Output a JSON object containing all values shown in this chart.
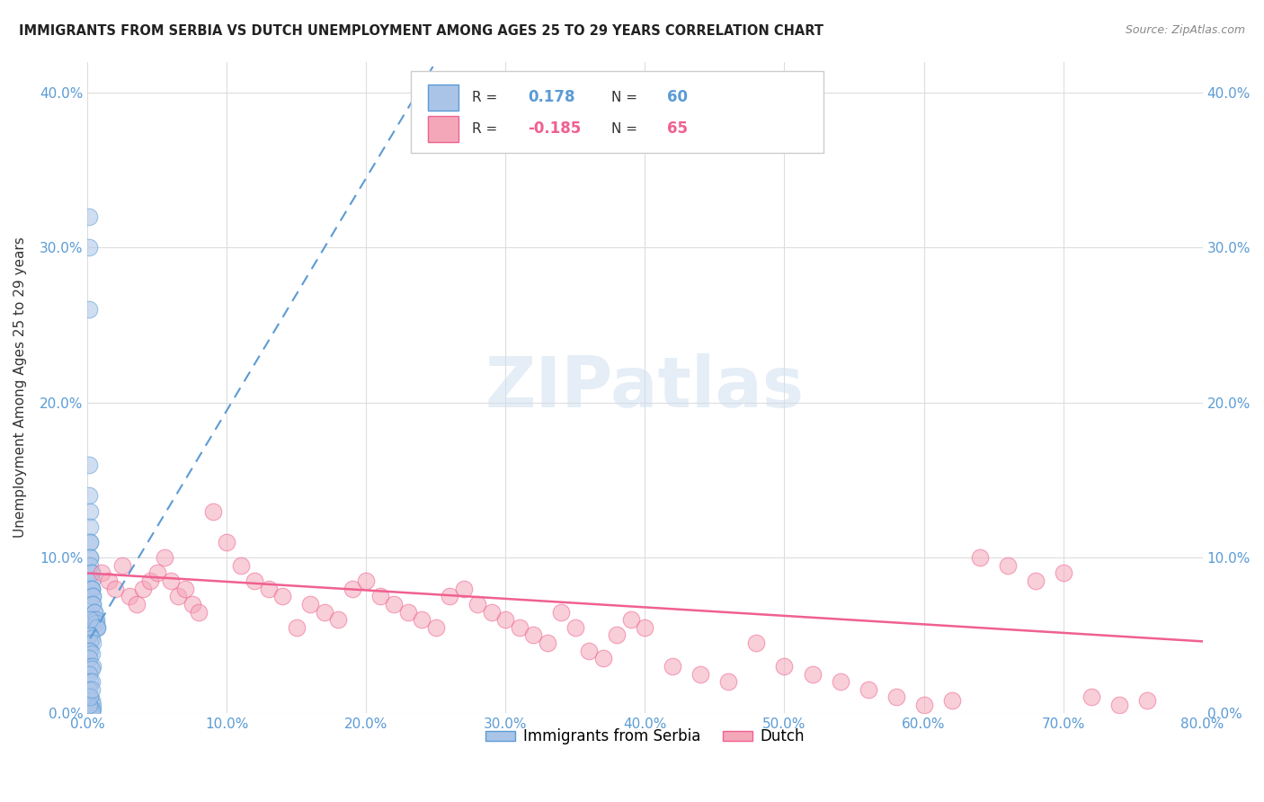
{
  "title": "IMMIGRANTS FROM SERBIA VS DUTCH UNEMPLOYMENT AMONG AGES 25 TO 29 YEARS CORRELATION CHART",
  "source": "Source: ZipAtlas.com",
  "ylabel": "Unemployment Among Ages 25 to 29 years",
  "xlim": [
    0.0,
    0.8
  ],
  "ylim": [
    0.0,
    0.42
  ],
  "xticks": [
    0.0,
    0.1,
    0.2,
    0.3,
    0.4,
    0.5,
    0.6,
    0.7,
    0.8
  ],
  "yticks": [
    0.0,
    0.1,
    0.2,
    0.3,
    0.4
  ],
  "serbia_R": 0.178,
  "serbia_N": 60,
  "dutch_R": -0.185,
  "dutch_N": 65,
  "serbia_color": "#aac4e8",
  "dutch_color": "#f4a7b9",
  "serbia_line_color": "#5b9bd5",
  "dutch_line_color": "#f06090",
  "serbia_points_x": [
    0.001,
    0.001,
    0.001,
    0.001,
    0.001,
    0.002,
    0.002,
    0.002,
    0.002,
    0.002,
    0.002,
    0.002,
    0.003,
    0.003,
    0.003,
    0.003,
    0.003,
    0.003,
    0.004,
    0.004,
    0.004,
    0.004,
    0.005,
    0.005,
    0.005,
    0.006,
    0.006,
    0.006,
    0.007,
    0.007,
    0.001,
    0.002,
    0.001,
    0.003,
    0.002,
    0.004,
    0.001,
    0.002,
    0.003,
    0.001,
    0.002,
    0.004,
    0.003,
    0.001,
    0.002,
    0.003,
    0.001,
    0.002,
    0.003,
    0.004,
    0.001,
    0.002,
    0.003,
    0.004,
    0.002,
    0.003,
    0.001,
    0.002,
    0.003,
    0.002
  ],
  "serbia_points_y": [
    0.32,
    0.3,
    0.26,
    0.16,
    0.14,
    0.13,
    0.12,
    0.11,
    0.11,
    0.1,
    0.1,
    0.095,
    0.09,
    0.09,
    0.085,
    0.08,
    0.08,
    0.08,
    0.075,
    0.075,
    0.07,
    0.07,
    0.065,
    0.065,
    0.06,
    0.06,
    0.058,
    0.055,
    0.055,
    0.055,
    0.05,
    0.05,
    0.05,
    0.048,
    0.045,
    0.045,
    0.04,
    0.04,
    0.038,
    0.035,
    0.03,
    0.03,
    0.028,
    0.025,
    0.02,
    0.02,
    0.015,
    0.01,
    0.008,
    0.005,
    0.005,
    0.003,
    0.002,
    0.002,
    0.001,
    0.001,
    0.005,
    0.01,
    0.015,
    0.06
  ],
  "dutch_points_x": [
    0.01,
    0.015,
    0.02,
    0.025,
    0.03,
    0.035,
    0.04,
    0.045,
    0.05,
    0.055,
    0.06,
    0.065,
    0.07,
    0.075,
    0.08,
    0.09,
    0.1,
    0.11,
    0.12,
    0.13,
    0.14,
    0.15,
    0.16,
    0.17,
    0.18,
    0.19,
    0.2,
    0.21,
    0.22,
    0.23,
    0.24,
    0.25,
    0.26,
    0.27,
    0.28,
    0.29,
    0.3,
    0.31,
    0.32,
    0.33,
    0.34,
    0.35,
    0.36,
    0.37,
    0.38,
    0.39,
    0.4,
    0.42,
    0.44,
    0.46,
    0.48,
    0.5,
    0.52,
    0.54,
    0.56,
    0.58,
    0.6,
    0.62,
    0.64,
    0.66,
    0.68,
    0.7,
    0.72,
    0.74,
    0.76
  ],
  "dutch_points_y": [
    0.09,
    0.085,
    0.08,
    0.095,
    0.075,
    0.07,
    0.08,
    0.085,
    0.09,
    0.1,
    0.085,
    0.075,
    0.08,
    0.07,
    0.065,
    0.13,
    0.11,
    0.095,
    0.085,
    0.08,
    0.075,
    0.055,
    0.07,
    0.065,
    0.06,
    0.08,
    0.085,
    0.075,
    0.07,
    0.065,
    0.06,
    0.055,
    0.075,
    0.08,
    0.07,
    0.065,
    0.06,
    0.055,
    0.05,
    0.045,
    0.065,
    0.055,
    0.04,
    0.035,
    0.05,
    0.06,
    0.055,
    0.03,
    0.025,
    0.02,
    0.045,
    0.03,
    0.025,
    0.02,
    0.015,
    0.01,
    0.005,
    0.008,
    0.1,
    0.095,
    0.085,
    0.09,
    0.01,
    0.005,
    0.008
  ],
  "watermark": "ZIPatlas",
  "legend_serbia_label": "Immigrants from Serbia",
  "legend_dutch_label": "Dutch",
  "background_color": "#ffffff",
  "grid_color": "#dddddd",
  "serbia_trend_slope": 1.5,
  "serbia_trend_intercept": 0.045,
  "dutch_trend_slope": -0.055,
  "dutch_trend_intercept": 0.09
}
